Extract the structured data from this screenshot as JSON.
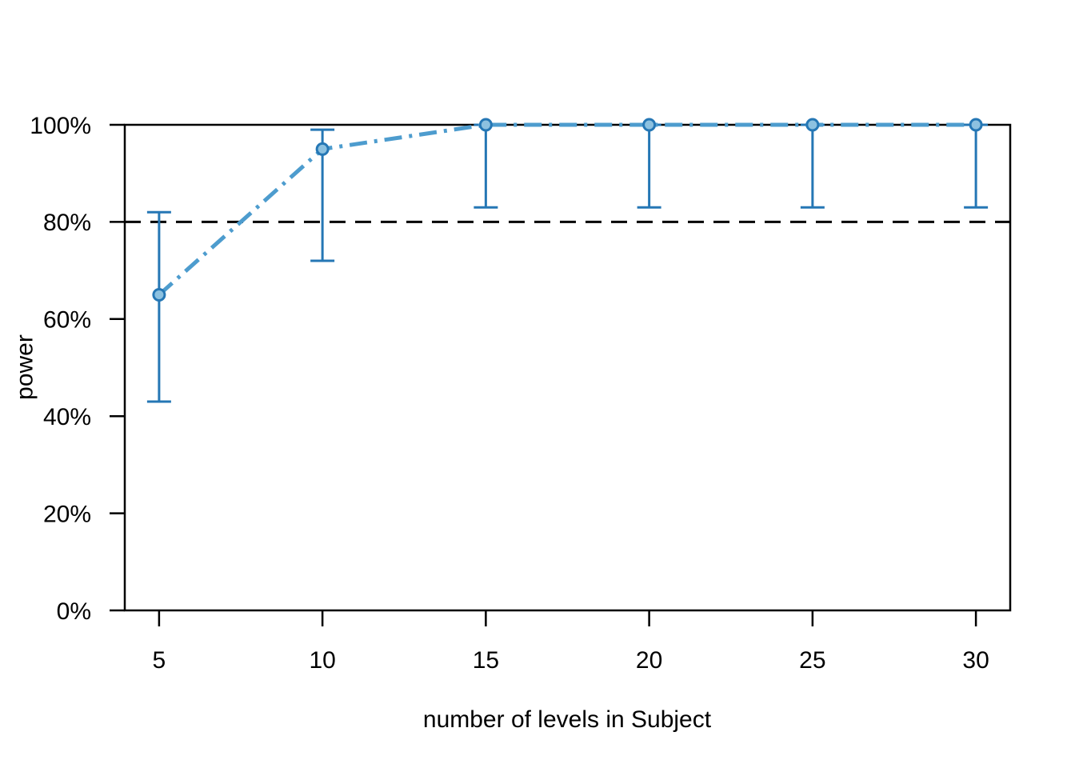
{
  "figure": {
    "background": "#ffffff"
  },
  "chart_data": {
    "type": "line",
    "title": "",
    "xlabel": "number of levels in Subject",
    "ylabel": "power",
    "x": [
      5,
      10,
      15,
      20,
      25,
      30
    ],
    "series": [
      {
        "name": "power",
        "values": [
          65,
          95,
          100,
          100,
          100,
          100
        ],
        "ci_lower": [
          43,
          72,
          83,
          83,
          83,
          83
        ],
        "ci_upper": [
          82,
          99,
          100,
          100,
          100,
          100
        ]
      }
    ],
    "reference_line": {
      "y": 80,
      "style": "dashed"
    },
    "x_ticks": {
      "values": [
        5,
        10,
        15,
        20,
        25,
        30
      ],
      "labels": [
        "5",
        "10",
        "15",
        "20",
        "25",
        "30"
      ]
    },
    "y_ticks": {
      "values": [
        0,
        20,
        40,
        60,
        80,
        100
      ],
      "labels": [
        "0%",
        "20%",
        "40%",
        "60%",
        "80%",
        "100%"
      ]
    },
    "xlim": [
      3.95,
      31.05
    ],
    "ylim": [
      0,
      100
    ],
    "grid": false,
    "legend": null,
    "line_style": "dotdash",
    "marker": "circle",
    "colors": {
      "line": "#4D9CCE",
      "error_bar": "#2577B5",
      "marker_fill": "#8CC1E0",
      "marker_stroke": "#2577B5",
      "axis": "#000000",
      "reference": "#000000"
    }
  }
}
